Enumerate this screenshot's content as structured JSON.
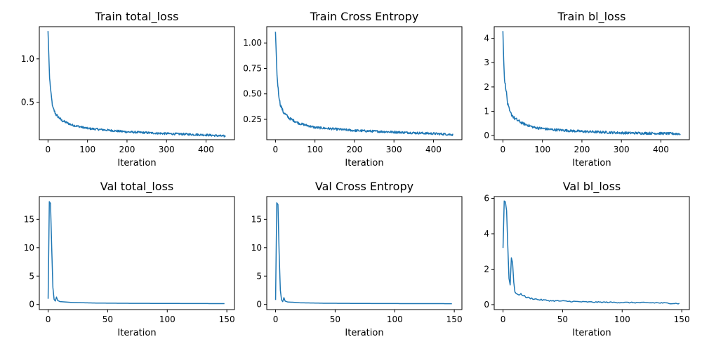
{
  "chart_data": [
    {
      "type": "line",
      "title": "Train total_loss",
      "xlabel": "Iteration",
      "ylabel": "",
      "xlim": [
        -22,
        472
      ],
      "ylim": [
        0.07,
        1.37
      ],
      "xticks": [
        0,
        100,
        200,
        300,
        400
      ],
      "yticks": [
        0.5,
        1.0
      ],
      "ytick_labels": [
        "0.5",
        "1.0"
      ],
      "series": [
        {
          "name": "",
          "n": 450,
          "noise": 0.012,
          "knots": [
            [
              0,
              1.32
            ],
            [
              2,
              1.05
            ],
            [
              4,
              0.78
            ],
            [
              8,
              0.58
            ],
            [
              12,
              0.44
            ],
            [
              20,
              0.36
            ],
            [
              35,
              0.29
            ],
            [
              60,
              0.24
            ],
            [
              100,
              0.2
            ],
            [
              150,
              0.18
            ],
            [
              200,
              0.16
            ],
            [
              300,
              0.14
            ],
            [
              400,
              0.125
            ],
            [
              449,
              0.11
            ]
          ]
        }
      ]
    },
    {
      "type": "line",
      "title": "Train Cross Entropy",
      "xlabel": "Iteration",
      "ylabel": "",
      "xlim": [
        -22,
        472
      ],
      "ylim": [
        0.05,
        1.16
      ],
      "xticks": [
        0,
        100,
        200,
        300,
        400
      ],
      "yticks": [
        0.25,
        0.5,
        0.75,
        1.0
      ],
      "ytick_labels": [
        "0.25",
        "0.50",
        "0.75",
        "1.00"
      ],
      "series": [
        {
          "name": "",
          "n": 450,
          "noise": 0.011,
          "knots": [
            [
              0,
              1.11
            ],
            [
              2,
              0.9
            ],
            [
              4,
              0.68
            ],
            [
              8,
              0.5
            ],
            [
              12,
              0.4
            ],
            [
              20,
              0.32
            ],
            [
              35,
              0.26
            ],
            [
              60,
              0.21
            ],
            [
              100,
              0.17
            ],
            [
              150,
              0.155
            ],
            [
              200,
              0.14
            ],
            [
              300,
              0.125
            ],
            [
              400,
              0.11
            ],
            [
              449,
              0.1
            ]
          ]
        }
      ]
    },
    {
      "type": "line",
      "title": "Train bl_loss",
      "xlabel": "Iteration",
      "ylabel": "",
      "xlim": [
        -22,
        472
      ],
      "ylim": [
        -0.17,
        4.48
      ],
      "xticks": [
        0,
        100,
        200,
        300,
        400
      ],
      "yticks": [
        0,
        1,
        2,
        3,
        4
      ],
      "ytick_labels": [
        "0",
        "1",
        "2",
        "3",
        "4"
      ],
      "series": [
        {
          "name": "",
          "n": 450,
          "noise": 0.05,
          "knots": [
            [
              0,
              4.3
            ],
            [
              2,
              3.1
            ],
            [
              4,
              2.3
            ],
            [
              8,
              1.9
            ],
            [
              12,
              1.3
            ],
            [
              18,
              0.95
            ],
            [
              30,
              0.7
            ],
            [
              50,
              0.5
            ],
            [
              80,
              0.33
            ],
            [
              120,
              0.25
            ],
            [
              200,
              0.17
            ],
            [
              300,
              0.11
            ],
            [
              400,
              0.09
            ],
            [
              449,
              0.07
            ]
          ]
        }
      ]
    },
    {
      "type": "line",
      "title": "Val total_loss",
      "xlabel": "Iteration",
      "ylabel": "",
      "xlim": [
        -7.4,
        156.4
      ],
      "ylim": [
        -0.9,
        19.0
      ],
      "xticks": [
        0,
        50,
        100,
        150
      ],
      "yticks": [
        0,
        5,
        10,
        15
      ],
      "ytick_labels": [
        "0",
        "5",
        "10",
        "15"
      ],
      "series": [
        {
          "name": "",
          "n": 149,
          "noise": 0.0,
          "knots": [
            [
              0,
              1.0
            ],
            [
              1,
              18.1
            ],
            [
              2,
              17.8
            ],
            [
              3,
              10.0
            ],
            [
              4,
              3.0
            ],
            [
              5,
              0.9
            ],
            [
              6,
              0.6
            ],
            [
              7,
              1.3
            ],
            [
              8,
              0.7
            ],
            [
              10,
              0.5
            ],
            [
              20,
              0.35
            ],
            [
              40,
              0.25
            ],
            [
              70,
              0.2
            ],
            [
              100,
              0.18
            ],
            [
              148,
              0.15
            ]
          ]
        }
      ]
    },
    {
      "type": "line",
      "title": "Val Cross Entropy",
      "xlabel": "Iteration",
      "ylabel": "",
      "xlim": [
        -7.4,
        156.4
      ],
      "ylim": [
        -0.9,
        19.0
      ],
      "xticks": [
        0,
        50,
        100,
        150
      ],
      "yticks": [
        0,
        5,
        10,
        15
      ],
      "ytick_labels": [
        "0",
        "5",
        "10",
        "15"
      ],
      "series": [
        {
          "name": "",
          "n": 149,
          "noise": 0.0,
          "knots": [
            [
              0,
              0.8
            ],
            [
              1,
              17.9
            ],
            [
              2,
              17.6
            ],
            [
              3,
              9.0
            ],
            [
              4,
              2.5
            ],
            [
              5,
              0.8
            ],
            [
              6,
              0.5
            ],
            [
              7,
              1.2
            ],
            [
              8,
              0.6
            ],
            [
              10,
              0.45
            ],
            [
              20,
              0.3
            ],
            [
              40,
              0.22
            ],
            [
              70,
              0.18
            ],
            [
              100,
              0.16
            ],
            [
              148,
              0.14
            ]
          ]
        }
      ]
    },
    {
      "type": "line",
      "title": "Val bl_loss",
      "xlabel": "Iteration",
      "ylabel": "",
      "xlim": [
        -7.4,
        156.4
      ],
      "ylim": [
        -0.28,
        6.1
      ],
      "xticks": [
        0,
        50,
        100,
        150
      ],
      "yticks": [
        0,
        2,
        4,
        6
      ],
      "ytick_labels": [
        "0",
        "2",
        "4",
        "6"
      ],
      "series": [
        {
          "name": "",
          "n": 149,
          "noise": 0.03,
          "knots": [
            [
              0,
              3.2
            ],
            [
              1,
              5.85
            ],
            [
              2,
              5.8
            ],
            [
              3,
              5.3
            ],
            [
              4,
              3.3
            ],
            [
              5,
              1.5
            ],
            [
              6,
              1.1
            ],
            [
              7,
              2.6
            ],
            [
              8,
              2.4
            ],
            [
              9,
              1.3
            ],
            [
              10,
              0.7
            ],
            [
              12,
              0.55
            ],
            [
              15,
              0.6
            ],
            [
              20,
              0.4
            ],
            [
              30,
              0.28
            ],
            [
              40,
              0.22
            ],
            [
              50,
              0.2
            ],
            [
              70,
              0.15
            ],
            [
              100,
              0.12
            ],
            [
              130,
              0.1
            ],
            [
              148,
              0.06
            ]
          ]
        }
      ]
    }
  ]
}
